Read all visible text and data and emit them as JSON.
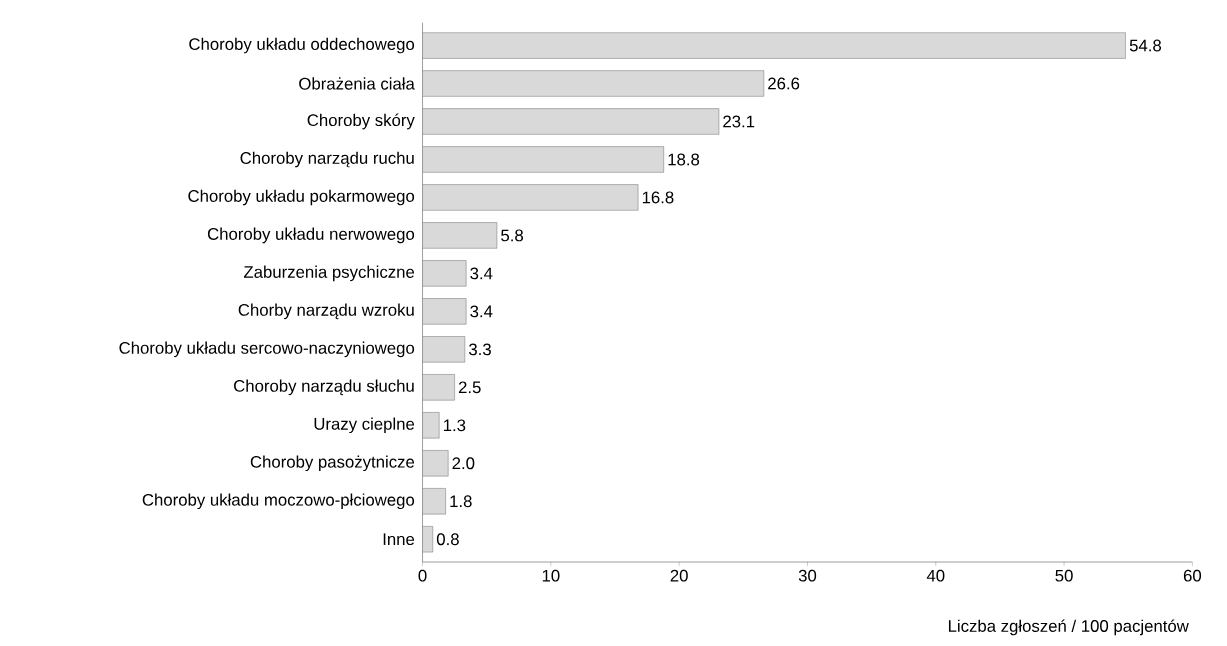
{
  "chart_data": {
    "type": "bar",
    "orientation": "horizontal",
    "xlabel": "Liczba zgłoszeń / 100 pacjentów",
    "categories": [
      "Choroby układu oddechowego",
      "Obrażenia ciała",
      "Choroby skóry",
      "Choroby narządu ruchu",
      "Choroby układu pokarmowego",
      "Choroby układu nerwowego",
      "Zaburzenia psychiczne",
      "Chorby narządu wzroku",
      "Choroby układu sercowo-naczyniowego",
      "Choroby narządu słuchu",
      "Urazy cieplne",
      "Choroby pasożytnicze",
      "Choroby układu moczowo-płciowego",
      "Inne"
    ],
    "values": [
      54.8,
      26.6,
      23.1,
      18.8,
      16.8,
      5.8,
      3.4,
      3.4,
      3.3,
      2.5,
      1.3,
      2.0,
      1.8,
      0.8
    ],
    "value_labels": [
      "54.8",
      "26.6",
      "23.1",
      "18.8",
      "16.8",
      "5.8",
      "3.4",
      "3.4",
      "3.3",
      "2.5",
      "1.3",
      "2.0",
      "1.8",
      "0.8"
    ],
    "color": "#d9d9d9",
    "xlim": [
      0,
      60
    ],
    "xticks": [
      0,
      10,
      20,
      30,
      40,
      50,
      60
    ],
    "grid": false
  }
}
